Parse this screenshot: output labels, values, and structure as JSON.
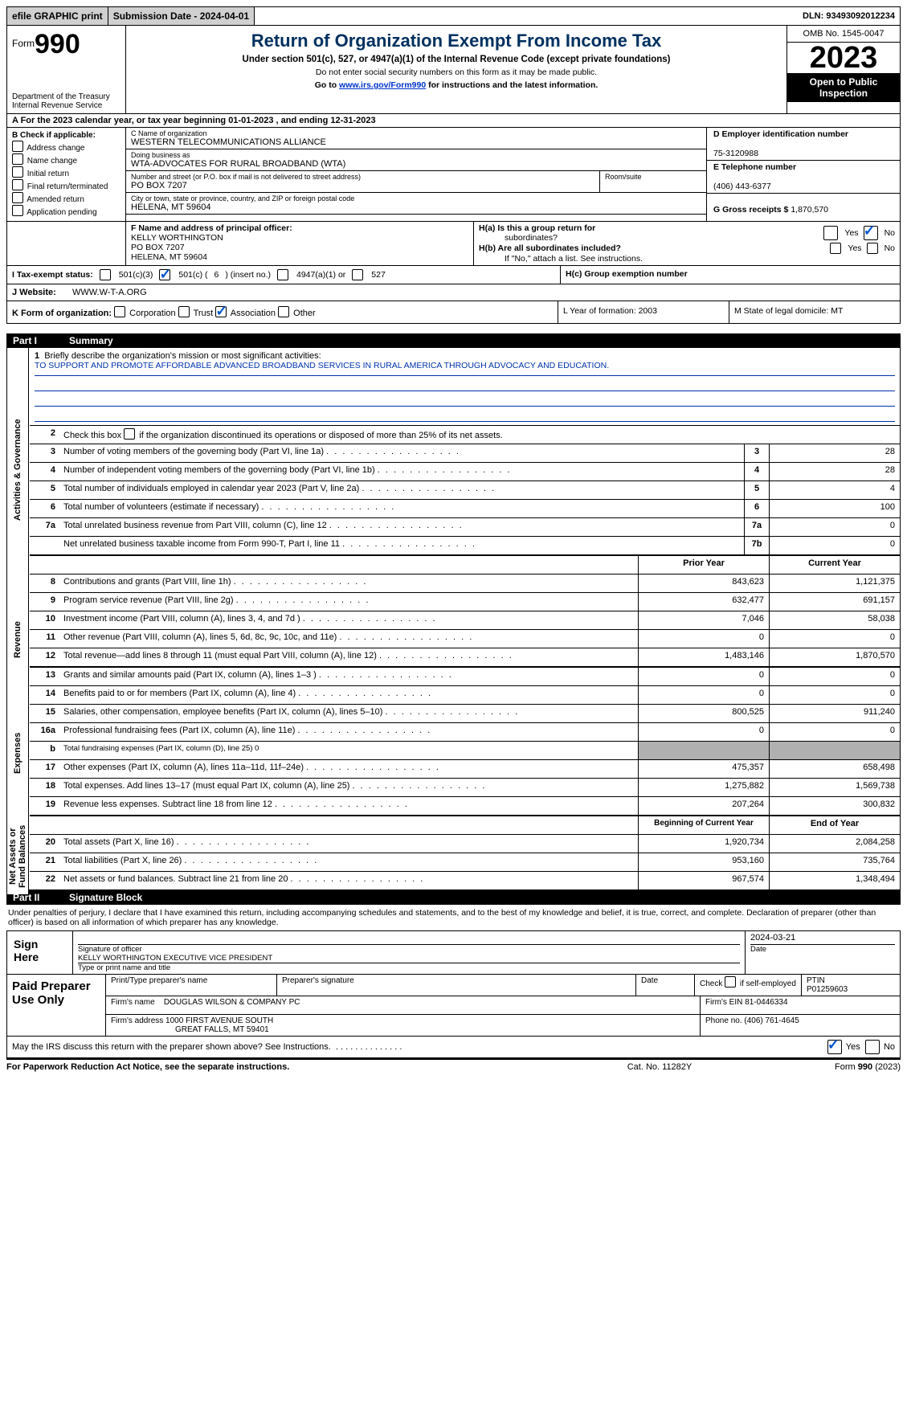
{
  "topbar": {
    "efile": "efile GRAPHIC print",
    "submission": "Submission Date - 2024-04-01",
    "dln": "DLN: 93493092012234"
  },
  "header": {
    "form_prefix": "Form",
    "form_number": "990",
    "dept1": "Department of the Treasury",
    "dept2": "Internal Revenue Service",
    "title": "Return of Organization Exempt From Income Tax",
    "subtitle": "Under section 501(c), 527, or 4947(a)(1) of the Internal Revenue Code (except private foundations)",
    "note1": "Do not enter social security numbers on this form as it may be made public.",
    "note2_pre": "Go to ",
    "note2_link": "www.irs.gov/Form990",
    "note2_post": " for instructions and the latest information.",
    "omb": "OMB No. 1545-0047",
    "year": "2023",
    "open": "Open to Public Inspection"
  },
  "rowA": {
    "text": "A  For the 2023 calendar year, or tax year beginning 01-01-2023   , and ending 12-31-2023"
  },
  "boxB": {
    "title": "B Check if applicable:",
    "opts": [
      "Address change",
      "Name change",
      "Initial return",
      "Final return/terminated",
      "Amended return",
      "Application pending"
    ]
  },
  "boxC": {
    "name_label": "C Name of organization",
    "name": "WESTERN TELECOMMUNICATIONS ALLIANCE",
    "dba_label": "Doing business as",
    "dba": "WTA-ADVOCATES FOR RURAL BROADBAND (WTA)",
    "street_label": "Number and street (or P.O. box if mail is not delivered to street address)",
    "street": "PO BOX 7207",
    "room_label": "Room/suite",
    "city_label": "City or town, state or province, country, and ZIP or foreign postal code",
    "city": "HELENA, MT  59604"
  },
  "boxD": {
    "ein_label": "D Employer identification number",
    "ein": "75-3120988",
    "tel_label": "E Telephone number",
    "tel": "(406) 443-6377",
    "gross_label": "G Gross receipts $",
    "gross": "1,870,570"
  },
  "boxF": {
    "label": "F  Name and address of principal officer:",
    "line1": "KELLY WORTHINGTON",
    "line2": "PO BOX 7207",
    "line3": "HELENA, MT  59604"
  },
  "boxH": {
    "ha1": "H(a)  Is this a group return for",
    "ha2": "subordinates?",
    "hb": "H(b)  Are all subordinates included?",
    "hb_note": "If \"No,\" attach a list. See instructions.",
    "hc": "H(c)  Group exemption number",
    "yes": "Yes",
    "no": "No"
  },
  "boxI": {
    "label": "I  Tax-exempt status:",
    "op1": "501(c)(3)",
    "op2_pre": "501(c) (",
    "op2_num": "6",
    "op2_post": ") (insert no.)",
    "op3": "4947(a)(1) or",
    "op4": "527"
  },
  "boxJ": {
    "label": "J  Website:",
    "value": "WWW.W-T-A.ORG"
  },
  "boxK": {
    "label": "K Form of organization:",
    "op1": "Corporation",
    "op2": "Trust",
    "op3": "Association",
    "op4": "Other"
  },
  "boxL": {
    "text": "L Year of formation: 2003"
  },
  "boxM": {
    "text": "M State of legal domicile: MT"
  },
  "part1": {
    "tag": "Part I",
    "title": "Summary"
  },
  "vlabels": {
    "gov": "Activities & Governance",
    "rev": "Revenue",
    "exp": "Expenses",
    "net": "Net Assets or Fund Balances"
  },
  "summary": {
    "line1_label": "Briefly describe the organization's mission or most significant activities:",
    "mission": "TO SUPPORT AND PROMOTE AFFORDABLE ADVANCED BROADBAND SERVICES IN RURAL AMERICA THROUGH ADVOCACY AND EDUCATION.",
    "line2": "Check this box      if the organization discontinued its operations or disposed of more than 25% of its net assets.",
    "rows_single": [
      {
        "n": "3",
        "d": "Number of voting members of the governing body (Part VI, line 1a)",
        "box": "3",
        "v": "28"
      },
      {
        "n": "4",
        "d": "Number of independent voting members of the governing body (Part VI, line 1b)",
        "box": "4",
        "v": "28"
      },
      {
        "n": "5",
        "d": "Total number of individuals employed in calendar year 2023 (Part V, line 2a)",
        "box": "5",
        "v": "4"
      },
      {
        "n": "6",
        "d": "Total number of volunteers (estimate if necessary)",
        "box": "6",
        "v": "100"
      },
      {
        "n": "7a",
        "d": "Total unrelated business revenue from Part VIII, column (C), line 12",
        "box": "7a",
        "v": "0"
      },
      {
        "n": "",
        "d": "Net unrelated business taxable income from Form 990-T, Part I, line 11",
        "box": "7b",
        "v": "0"
      }
    ],
    "hdr_prior": "Prior Year",
    "hdr_curr": "Current Year",
    "rows_rev": [
      {
        "n": "8",
        "d": "Contributions and grants (Part VIII, line 1h)",
        "p": "843,623",
        "c": "1,121,375"
      },
      {
        "n": "9",
        "d": "Program service revenue (Part VIII, line 2g)",
        "p": "632,477",
        "c": "691,157"
      },
      {
        "n": "10",
        "d": "Investment income (Part VIII, column (A), lines 3, 4, and 7d )",
        "p": "7,046",
        "c": "58,038"
      },
      {
        "n": "11",
        "d": "Other revenue (Part VIII, column (A), lines 5, 6d, 8c, 9c, 10c, and 11e)",
        "p": "0",
        "c": "0"
      },
      {
        "n": "12",
        "d": "Total revenue—add lines 8 through 11 (must equal Part VIII, column (A), line 12)",
        "p": "1,483,146",
        "c": "1,870,570"
      }
    ],
    "rows_exp": [
      {
        "n": "13",
        "d": "Grants and similar amounts paid (Part IX, column (A), lines 1–3 )",
        "p": "0",
        "c": "0"
      },
      {
        "n": "14",
        "d": "Benefits paid to or for members (Part IX, column (A), line 4)",
        "p": "0",
        "c": "0"
      },
      {
        "n": "15",
        "d": "Salaries, other compensation, employee benefits (Part IX, column (A), lines 5–10)",
        "p": "800,525",
        "c": "911,240"
      },
      {
        "n": "16a",
        "d": "Professional fundraising fees (Part IX, column (A), line 11e)",
        "p": "0",
        "c": "0"
      },
      {
        "n": "b",
        "d": "Total fundraising expenses (Part IX, column (D), line 25) 0",
        "p": "",
        "c": "",
        "shade": true,
        "small": true
      },
      {
        "n": "17",
        "d": "Other expenses (Part IX, column (A), lines 11a–11d, 11f–24e)",
        "p": "475,357",
        "c": "658,498"
      },
      {
        "n": "18",
        "d": "Total expenses. Add lines 13–17 (must equal Part IX, column (A), line 25)",
        "p": "1,275,882",
        "c": "1,569,738"
      },
      {
        "n": "19",
        "d": "Revenue less expenses. Subtract line 18 from line 12",
        "p": "207,264",
        "c": "300,832"
      }
    ],
    "hdr_begin": "Beginning of Current Year",
    "hdr_end": "End of Year",
    "rows_net": [
      {
        "n": "20",
        "d": "Total assets (Part X, line 16)",
        "p": "1,920,734",
        "c": "2,084,258"
      },
      {
        "n": "21",
        "d": "Total liabilities (Part X, line 26)",
        "p": "953,160",
        "c": "735,764"
      },
      {
        "n": "22",
        "d": "Net assets or fund balances. Subtract line 21 from line 20",
        "p": "967,574",
        "c": "1,348,494"
      }
    ]
  },
  "part2": {
    "tag": "Part II",
    "title": "Signature Block"
  },
  "sig": {
    "intro": "Under penalties of perjury, I declare that I have examined this return, including accompanying schedules and statements, and to the best of my knowledge and belief, it is true, correct, and complete. Declaration of preparer (other than officer) is based on all information of which preparer has any knowledge.",
    "sign_here": "Sign Here",
    "sig_officer_lbl": "Signature of officer",
    "date_lbl": "Date",
    "date_val": "2024-03-21",
    "officer_name": "KELLY WORTHINGTON  EXECUTIVE VICE PRESIDENT",
    "type_lbl": "Type or print name and title"
  },
  "prep": {
    "label": "Paid Preparer Use Only",
    "r1c1": "Print/Type preparer's name",
    "r1c2": "Preparer's signature",
    "r1c3": "Date",
    "r1c4_pre": "Check        if self-employed",
    "r1c5_lbl": "PTIN",
    "r1c5_val": "P01259603",
    "r2c1_lbl": "Firm's name    ",
    "r2c1_val": "DOUGLAS WILSON & COMPANY PC",
    "r2c2_lbl": "Firm's EIN ",
    "r2c2_val": "81-0446334",
    "r3c1_lbl": "Firm's address ",
    "r3c1_val1": "1000 FIRST AVENUE SOUTH",
    "r3c1_val2": "GREAT FALLS, MT  59401",
    "r3c2_lbl": "Phone no. ",
    "r3c2_val": "(406) 761-4645"
  },
  "discuss": {
    "q": "May the IRS discuss this return with the preparer shown above? See Instructions.",
    "yes": "Yes",
    "no": "No"
  },
  "footer": {
    "left": "For Paperwork Reduction Act Notice, see the separate instructions.",
    "center": "Cat. No. 11282Y",
    "right_pre": "Form ",
    "right_form": "990",
    "right_post": " (2023)"
  }
}
